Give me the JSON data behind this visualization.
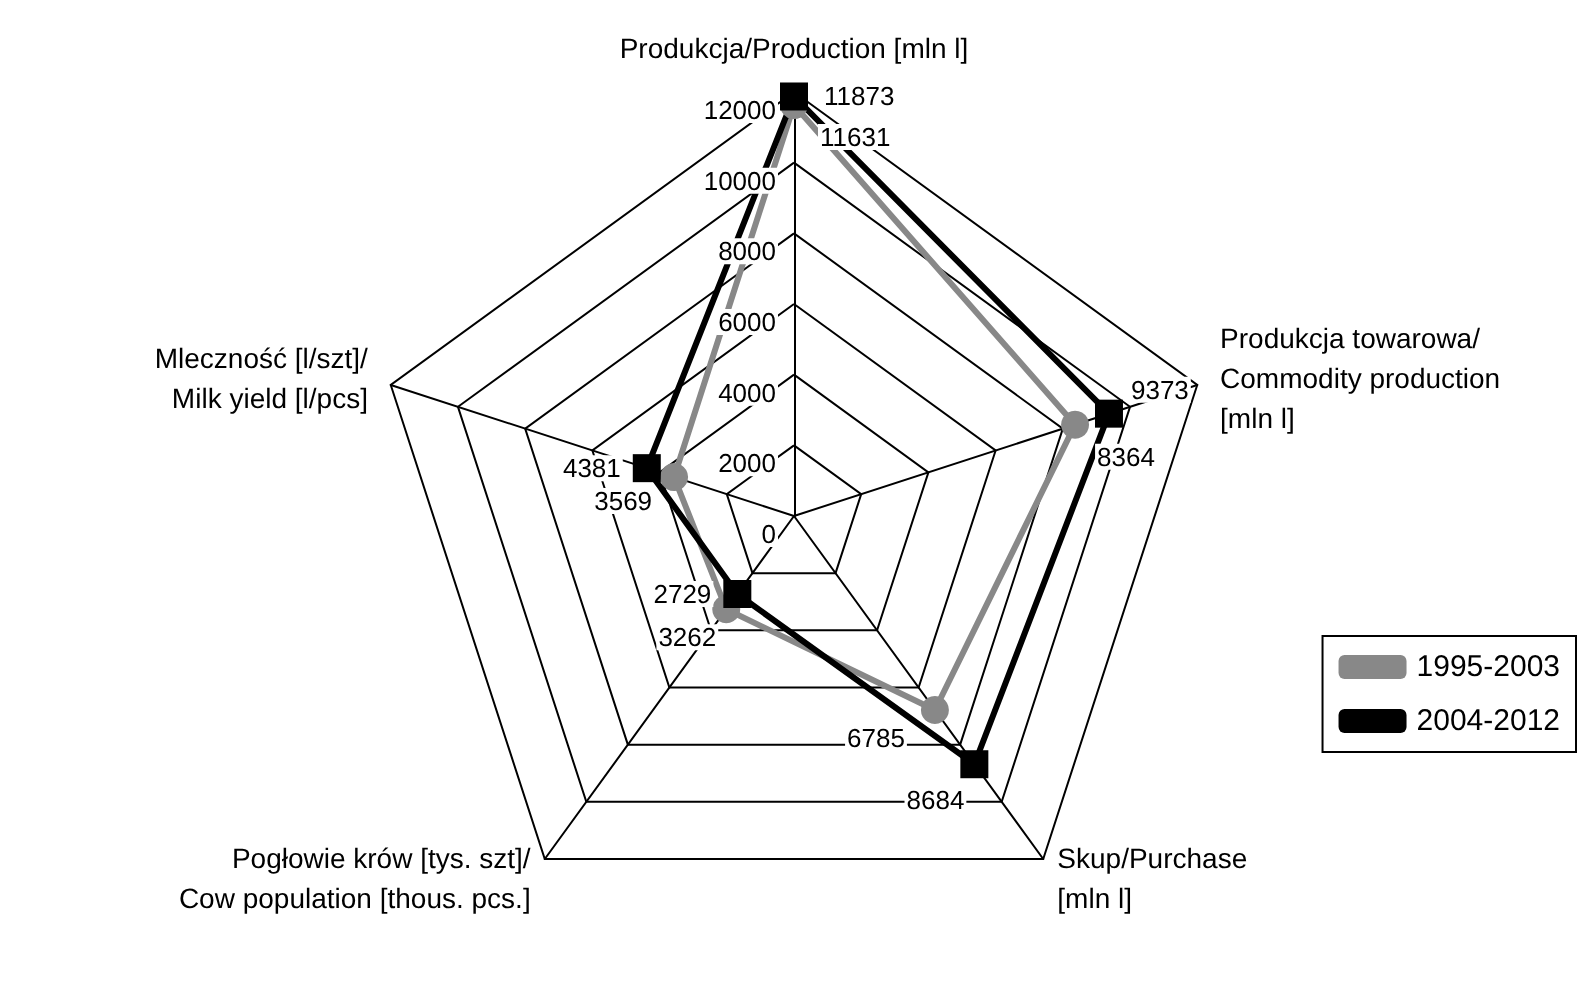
{
  "chart_data": {
    "type": "radar",
    "categories": [
      "Produkcja/Production [mln l]",
      "Produkcja towarowa/\nCommodity production\n[mln l]",
      "Skup/Purchase\n[mln l]",
      "Pogłowie krów [tys. szt]/\nCow population [thous. pcs.]",
      "Mleczność [l/szt]/\nMilk yield [l/pcs]"
    ],
    "series": [
      {
        "name": "1995-2003",
        "color": "#888888",
        "marker": "circle",
        "values": [
          11631,
          8364,
          6785,
          3262,
          3569
        ]
      },
      {
        "name": "2004-2012",
        "color": "#000000",
        "marker": "square",
        "values": [
          11873,
          9373,
          8684,
          2729,
          4381
        ]
      }
    ],
    "ylim": [
      0,
      12000
    ],
    "yticks": [
      0,
      2000,
      4000,
      6000,
      8000,
      10000,
      12000
    ],
    "data_labels": true,
    "legend": "right",
    "line_style": "solid"
  }
}
